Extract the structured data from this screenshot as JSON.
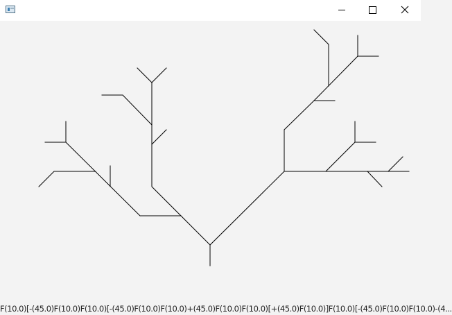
{
  "window": {
    "app_icon": "window-app-icon",
    "controls": {
      "minimize_icon": "minimize-icon",
      "maximize_icon": "maximize-icon",
      "close_icon": "close-icon"
    }
  },
  "status": {
    "lsystem_string": "F(10.0)[-(45.0)F(10.0)F(10.0)[-(45.0)F(10.0)F(10.0)+(45.0)F(10.0)F(10.0)[+(45.0)F(10.0)]F(10.0)[-(45.0)F(10.0)F(10.0)-(4..."
  },
  "colors": {
    "line": "#000000",
    "background": "#f3f3f3",
    "titlebar": "#ffffff"
  }
}
